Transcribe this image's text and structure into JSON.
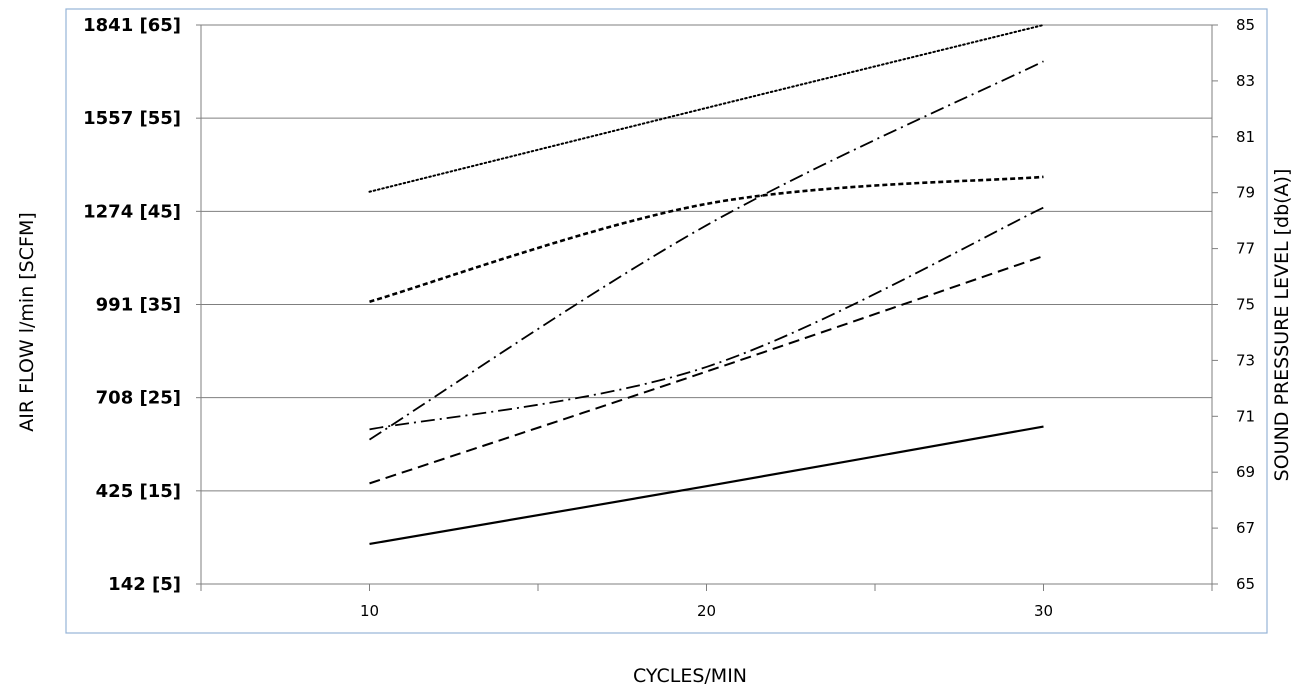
{
  "chart_data": {
    "type": "line",
    "title": "",
    "xlabel": "CYCLES/MIN",
    "ylabel": "AIR FLOW l/min [SCFM]",
    "ylabel_right": "SOUND PRESSURE LEVEL [db(A)]",
    "x_ticks": [
      10,
      20,
      30
    ],
    "xlim": [
      5,
      35
    ],
    "y_left_ticks": [
      "142 [5]",
      "425 [15]",
      "708 [25]",
      "991 [35]",
      "1274 [45]",
      "1557 [55]",
      "1841 [65]"
    ],
    "ylim_left_scfm": [
      5,
      65
    ],
    "y_right_ticks": [
      "65",
      "67",
      "69",
      "71",
      "73",
      "75",
      "77",
      "79",
      "81",
      "83",
      "85"
    ],
    "ylim_right_dba": [
      65,
      85
    ],
    "grid": true,
    "series": [
      {
        "style": "solid",
        "x": [
          10,
          20,
          30
        ],
        "y": [
          9.3,
          15.5,
          21.9
        ],
        "y_axis": "left"
      },
      {
        "style": "dashed",
        "x": [
          10,
          20,
          30
        ],
        "y": [
          15.8,
          27.8,
          40.2
        ],
        "y_axis": "left"
      },
      {
        "style": "dash-dot",
        "x": [
          10,
          20,
          30
        ],
        "y": [
          21.6,
          28.3,
          45.4
        ],
        "y_axis": "left"
      },
      {
        "style": "dash-dot",
        "x": [
          10,
          20,
          30
        ],
        "y": [
          20.5,
          43.5,
          61.1
        ],
        "y_axis": "left"
      },
      {
        "style": "short-dashed",
        "x": [
          10,
          20,
          30
        ],
        "y": [
          35.3,
          45.8,
          48.7
        ],
        "y_axis": "left"
      },
      {
        "style": "dotted",
        "x": [
          10,
          20,
          30
        ],
        "y": [
          47.1,
          56.1,
          65.0
        ],
        "y_axis": "left"
      }
    ]
  }
}
